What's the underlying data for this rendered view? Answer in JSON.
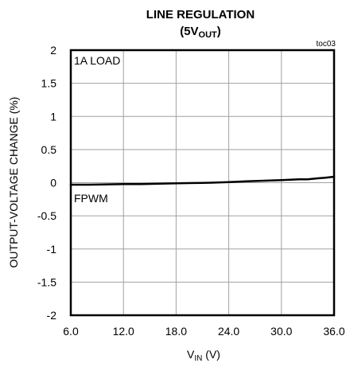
{
  "chart_data": {
    "type": "line",
    "title_line1": "LINE REGULATION",
    "title_line2_prefix": "(5V",
    "title_line2_sub": "OUT",
    "title_line2_suffix": ")",
    "figure_id": "toc03",
    "xlabel_main": "V",
    "xlabel_sub": "IN",
    "xlabel_unit": " (V)",
    "ylabel": "OUTPUT-VOLTAGE  CHANGE (%)",
    "xlim": [
      6,
      36
    ],
    "ylim": [
      -2,
      2
    ],
    "x_ticks": [
      6,
      12,
      18,
      24,
      30,
      36
    ],
    "x_tick_labels": [
      "6.0",
      "12.0",
      "18.0",
      "24.0",
      "30.0",
      "36.0"
    ],
    "y_ticks": [
      2,
      1.5,
      1,
      0.5,
      0,
      -0.5,
      -1,
      -1.5,
      -2
    ],
    "y_tick_labels": [
      "2",
      "1.5",
      "1",
      "0.5",
      "0",
      "-0.5",
      "-1",
      "-1.5",
      "-2"
    ],
    "grid": true,
    "annotations": [
      "1A LOAD",
      "FPWM"
    ],
    "series": [
      {
        "x": [
          6,
          8,
          10,
          12,
          14,
          16,
          18,
          20,
          22,
          24,
          26,
          28,
          30,
          32,
          33,
          34,
          35,
          36
        ],
        "values": [
          -0.03,
          -0.03,
          -0.025,
          -0.02,
          -0.02,
          -0.015,
          -0.01,
          -0.005,
          0.0,
          0.01,
          0.02,
          0.03,
          0.04,
          0.05,
          0.05,
          0.065,
          0.075,
          0.09
        ]
      }
    ]
  }
}
